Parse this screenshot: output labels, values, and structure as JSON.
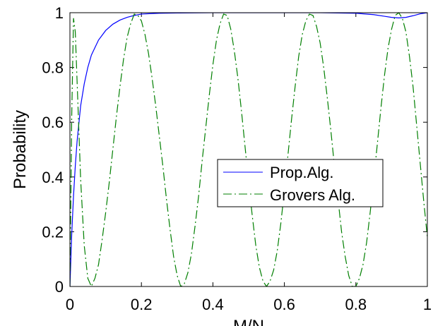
{
  "chart_data": {
    "type": "line",
    "title": "",
    "xlabel": "M/N",
    "ylabel": "Probability",
    "xlim": [
      0,
      1
    ],
    "ylim": [
      0,
      1
    ],
    "xticks": [
      "0",
      "0.2",
      "0.4",
      "0.6",
      "0.8",
      "1"
    ],
    "yticks": [
      "0",
      "0.2",
      "0.4",
      "0.6",
      "0.8",
      "1"
    ],
    "grid": false,
    "legend_position": "center-right",
    "series": [
      {
        "name": "Prop.Alg.",
        "color": "#0000ff",
        "style": "solid",
        "x": [
          0,
          0.005,
          0.01,
          0.015,
          0.02,
          0.03,
          0.04,
          0.05,
          0.06,
          0.08,
          0.1,
          0.12,
          0.14,
          0.16,
          0.18,
          0.2,
          0.25,
          0.3,
          0.4,
          0.5,
          0.6,
          0.7,
          0.8,
          0.85,
          0.88,
          0.9,
          0.92,
          0.94,
          0.96,
          0.98,
          1.0
        ],
        "y": [
          0,
          0.19,
          0.33,
          0.44,
          0.53,
          0.66,
          0.74,
          0.8,
          0.845,
          0.9,
          0.935,
          0.958,
          0.973,
          0.983,
          0.99,
          0.995,
          0.998,
          0.999,
          1.0,
          1.0,
          1.0,
          1.0,
          0.998,
          0.993,
          0.987,
          0.983,
          0.981,
          0.983,
          0.989,
          0.996,
          1.0
        ]
      },
      {
        "name": "Grovers Alg.",
        "color": "#007f00",
        "style": "dashdot",
        "x": [
          0,
          0.005,
          0.01,
          0.015,
          0.02,
          0.03,
          0.04,
          0.05,
          0.06,
          0.07,
          0.08,
          0.09,
          0.1,
          0.11,
          0.12,
          0.13,
          0.14,
          0.15,
          0.16,
          0.17,
          0.18,
          0.19,
          0.2,
          0.21,
          0.22,
          0.23,
          0.24,
          0.25,
          0.26,
          0.27,
          0.28,
          0.29,
          0.3,
          0.31,
          0.32,
          0.33,
          0.34,
          0.35,
          0.36,
          0.37,
          0.38,
          0.39,
          0.4,
          0.41,
          0.42,
          0.43,
          0.44,
          0.45,
          0.46,
          0.47,
          0.48,
          0.49,
          0.5,
          0.51,
          0.52,
          0.53,
          0.54,
          0.55,
          0.56,
          0.57,
          0.58,
          0.59,
          0.6,
          0.61,
          0.62,
          0.63,
          0.64,
          0.65,
          0.66,
          0.67,
          0.68,
          0.69,
          0.7,
          0.71,
          0.72,
          0.73,
          0.74,
          0.75,
          0.76,
          0.77,
          0.78,
          0.79,
          0.8,
          0.81,
          0.82,
          0.83,
          0.84,
          0.85,
          0.86,
          0.87,
          0.88,
          0.89,
          0.9,
          0.91,
          0.92,
          0.93,
          0.94,
          0.95,
          0.96,
          0.97,
          0.98,
          0.99,
          1.0
        ],
        "y": [
          0,
          0.62,
          0.98,
          0.93,
          0.75,
          0.39,
          0.15,
          0.03,
          0.0,
          0.03,
          0.08,
          0.17,
          0.27,
          0.38,
          0.5,
          0.62,
          0.73,
          0.83,
          0.91,
          0.96,
          0.995,
          0.99,
          0.97,
          0.92,
          0.85,
          0.76,
          0.66,
          0.55,
          0.44,
          0.32,
          0.21,
          0.11,
          0.04,
          0.0,
          0.01,
          0.05,
          0.12,
          0.22,
          0.33,
          0.46,
          0.58,
          0.7,
          0.81,
          0.9,
          0.96,
          0.995,
          0.99,
          0.94,
          0.86,
          0.76,
          0.64,
          0.51,
          0.38,
          0.26,
          0.15,
          0.07,
          0.02,
          0.0,
          0.02,
          0.06,
          0.13,
          0.23,
          0.35,
          0.48,
          0.61,
          0.73,
          0.84,
          0.92,
          0.97,
          0.995,
          0.99,
          0.95,
          0.89,
          0.8,
          0.69,
          0.57,
          0.44,
          0.32,
          0.2,
          0.11,
          0.04,
          0.0,
          0.0,
          0.03,
          0.08,
          0.16,
          0.27,
          0.39,
          0.52,
          0.65,
          0.77,
          0.87,
          0.94,
          0.99,
          1.0,
          0.98,
          0.93,
          0.84,
          0.73,
          0.59,
          0.45,
          0.31,
          0.18
        ]
      }
    ]
  }
}
